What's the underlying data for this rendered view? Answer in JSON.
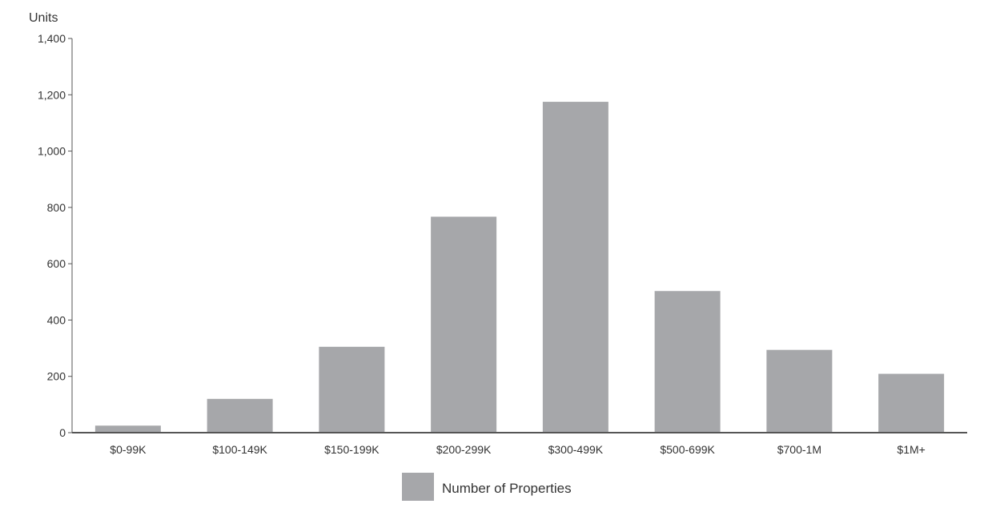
{
  "chart_data": {
    "type": "bar",
    "title": "",
    "xlabel": "",
    "ylabel": "Units",
    "ylim": [
      0,
      1400
    ],
    "yticks": [
      0,
      200,
      400,
      600,
      800,
      1000,
      1200,
      1400
    ],
    "ytick_labels": [
      "0",
      "200",
      "400",
      "600",
      "800",
      "1,000",
      "1,200",
      "1,400"
    ],
    "categories": [
      "$0-99K",
      "$100-149K",
      "$150-199K",
      "$200-299K",
      "$300-499K",
      "$500-699K",
      "$700-1M",
      "$1M+"
    ],
    "series": [
      {
        "name": "Number of Properties",
        "color": "#a6a7aa",
        "values": [
          25,
          120,
          305,
          767,
          1175,
          503,
          294,
          209
        ]
      }
    ],
    "grid": false,
    "legend_position": "bottom-center"
  },
  "colors": {
    "bar": "#a6a7aa",
    "axis": "#555555",
    "text": "#333333"
  }
}
